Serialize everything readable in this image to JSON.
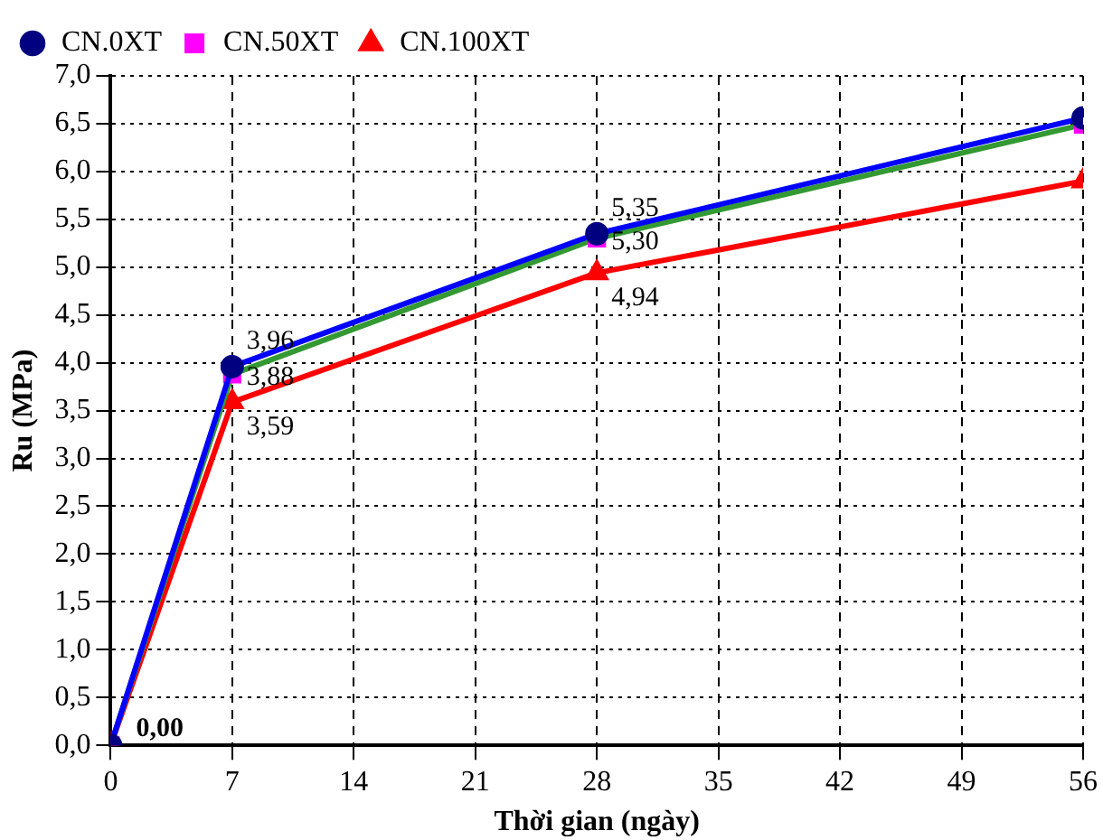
{
  "chart_data": {
    "type": "line",
    "xlabel": "Thời gian (ngày)",
    "ylabel": "Ru (MPa)",
    "x": [
      0,
      7,
      28,
      56
    ],
    "xlim": [
      0,
      56
    ],
    "xticks": [
      0,
      7,
      14,
      21,
      28,
      35,
      42,
      49,
      56
    ],
    "ylim": [
      0,
      7
    ],
    "yticks": [
      {
        "value": 0,
        "label": "0,0"
      },
      {
        "value": 0.5,
        "label": "0,5"
      },
      {
        "value": 1,
        "label": "1,0"
      },
      {
        "value": 1.5,
        "label": "1,5"
      },
      {
        "value": 2,
        "label": "2,0"
      },
      {
        "value": 2.5,
        "label": "2,5"
      },
      {
        "value": 3,
        "label": "3,0"
      },
      {
        "value": 3.5,
        "label": "3,5"
      },
      {
        "value": 4,
        "label": "4,0"
      },
      {
        "value": 4.5,
        "label": "4,5"
      },
      {
        "value": 5,
        "label": "5,0"
      },
      {
        "value": 5.5,
        "label": "5,5"
      },
      {
        "value": 6,
        "label": "6,0"
      },
      {
        "value": 6.5,
        "label": "6,5"
      },
      {
        "value": 7,
        "label": "7,0"
      }
    ],
    "grid": true,
    "legend": "top left",
    "line_style": "solid",
    "series": [
      {
        "name": "CN.0XT",
        "color": "#0000ff",
        "colors": [
          "#000080",
          "#000080",
          "#000080",
          "#000080"
        ],
        "marker": "circle",
        "values": [
          0,
          3.96,
          5.35,
          6.56
        ],
        "value_labels": [
          null,
          "3,96",
          "5,35",
          null
        ]
      },
      {
        "name": "CN.50XT",
        "color": "#339933",
        "colors": [
          "#ff00ff",
          "#ff00ff",
          "#ff00ff",
          "#ff00ff"
        ],
        "marker": "square",
        "values": [
          0,
          3.88,
          5.3,
          6.49
        ],
        "value_labels": [
          null,
          "3,88",
          "5,30",
          null
        ]
      },
      {
        "name": "CN.100XT",
        "color": "#ff0000",
        "colors": [
          "#ff0000",
          "#ff0000",
          "#ff0000",
          "#ff0000"
        ],
        "marker": "triangle",
        "values": [
          0,
          3.59,
          4.94,
          5.9
        ],
        "value_labels": [
          "0,00",
          "3,59",
          "4,94",
          null
        ]
      }
    ]
  }
}
